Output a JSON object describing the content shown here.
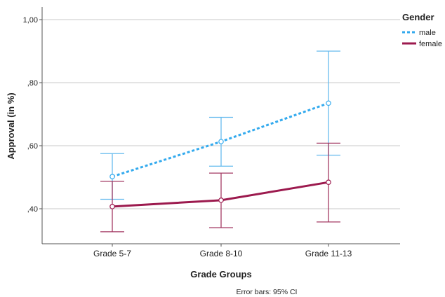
{
  "chart_data": {
    "type": "line",
    "xlabel": "Grade Groups",
    "ylabel": "Approval (in %)",
    "categories": [
      "Grade 5-7",
      "Grade 8-10",
      "Grade 11-13"
    ],
    "ylim": [
      0.3,
      1.0
    ],
    "yticks": [
      0.4,
      0.6,
      0.8,
      1.0
    ],
    "ytick_labels": [
      ",40",
      ",60",
      ",80",
      "1,00"
    ],
    "grid": "horizontal",
    "legend_title": "Gender",
    "legend_position": "top-right",
    "note": "Error bars: 95% CI",
    "series": [
      {
        "name": "male",
        "color": "#33aaee",
        "error_color": "#66bbee",
        "style": "dotted",
        "values": [
          0.502,
          0.613,
          0.735
        ],
        "ci_low": [
          0.43,
          0.535,
          0.57
        ],
        "ci_high": [
          0.575,
          0.69,
          0.9
        ]
      },
      {
        "name": "female",
        "color": "#9c1a4e",
        "error_color": "#a33a63",
        "style": "solid",
        "values": [
          0.407,
          0.427,
          0.484
        ],
        "ci_low": [
          0.327,
          0.34,
          0.358
        ],
        "ci_high": [
          0.487,
          0.513,
          0.608
        ]
      }
    ]
  }
}
